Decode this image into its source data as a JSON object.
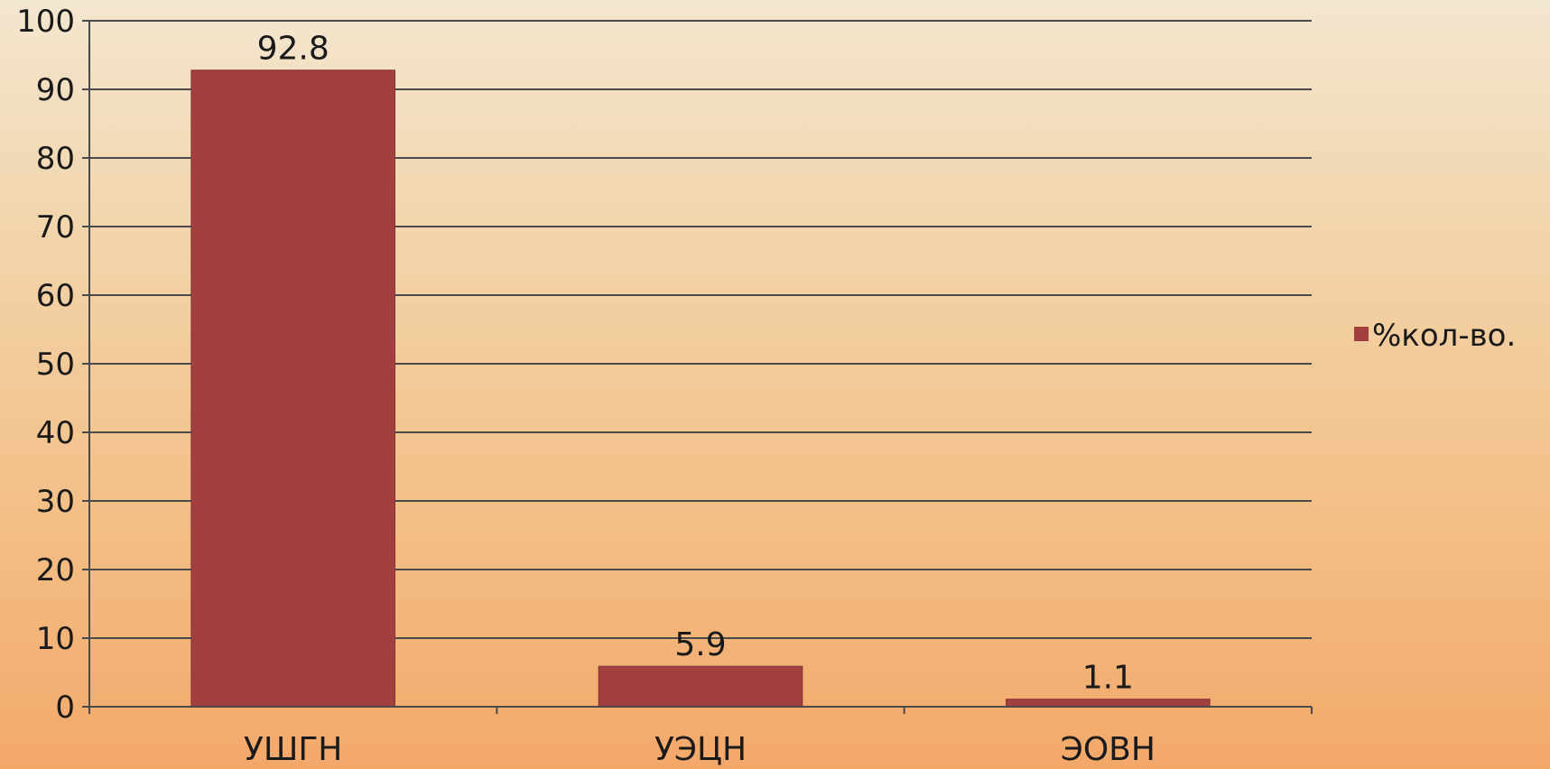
{
  "chart_data": {
    "type": "bar",
    "title": "",
    "xlabel": "",
    "ylabel": "",
    "categories": [
      "УШГН",
      "УЭЦН",
      "ЭОВН"
    ],
    "series": [
      {
        "name": "%кол-во.",
        "values": [
          92.8,
          5.9,
          1.1
        ],
        "color": "#a23f3f"
      }
    ],
    "data_labels": [
      "92.8",
      "5.9",
      "1.1"
    ],
    "ylim": [
      0,
      100
    ],
    "yticks": [
      0,
      10,
      20,
      30,
      40,
      50,
      60,
      70,
      80,
      90,
      100
    ],
    "grid": true,
    "legend": {
      "position": "right",
      "label": "%кол-во."
    }
  }
}
